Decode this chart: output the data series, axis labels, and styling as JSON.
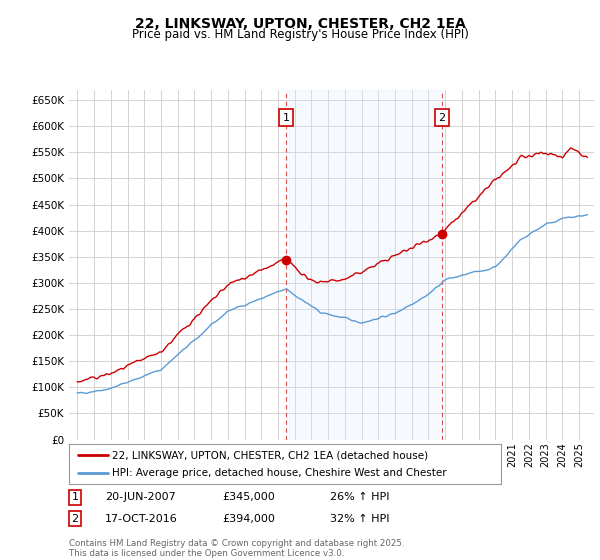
{
  "title": "22, LINKSWAY, UPTON, CHESTER, CH2 1EA",
  "subtitle": "Price paid vs. HM Land Registry's House Price Index (HPI)",
  "legend_line1": "22, LINKSWAY, UPTON, CHESTER, CH2 1EA (detached house)",
  "legend_line2": "HPI: Average price, detached house, Cheshire West and Chester",
  "sale1_label": "1",
  "sale1_date": "20-JUN-2007",
  "sale1_price": "£345,000",
  "sale1_hpi": "26% ↑ HPI",
  "sale1_year": 2007.47,
  "sale1_value": 345000,
  "sale2_label": "2",
  "sale2_date": "17-OCT-2016",
  "sale2_price": "£394,000",
  "sale2_hpi": "32% ↑ HPI",
  "sale2_year": 2016.79,
  "sale2_value": 394000,
  "red_color": "#cc0000",
  "blue_color": "#5b9bd5",
  "vline_color": "#e05050",
  "shade_color": "#ddeeff",
  "background_color": "#ffffff",
  "grid_color": "#cccccc",
  "ylim": [
    0,
    670000
  ],
  "yticks": [
    0,
    50000,
    100000,
    150000,
    200000,
    250000,
    300000,
    350000,
    400000,
    450000,
    500000,
    550000,
    600000,
    650000
  ],
  "footer": "Contains HM Land Registry data © Crown copyright and database right 2025.\nThis data is licensed under the Open Government Licence v3.0."
}
